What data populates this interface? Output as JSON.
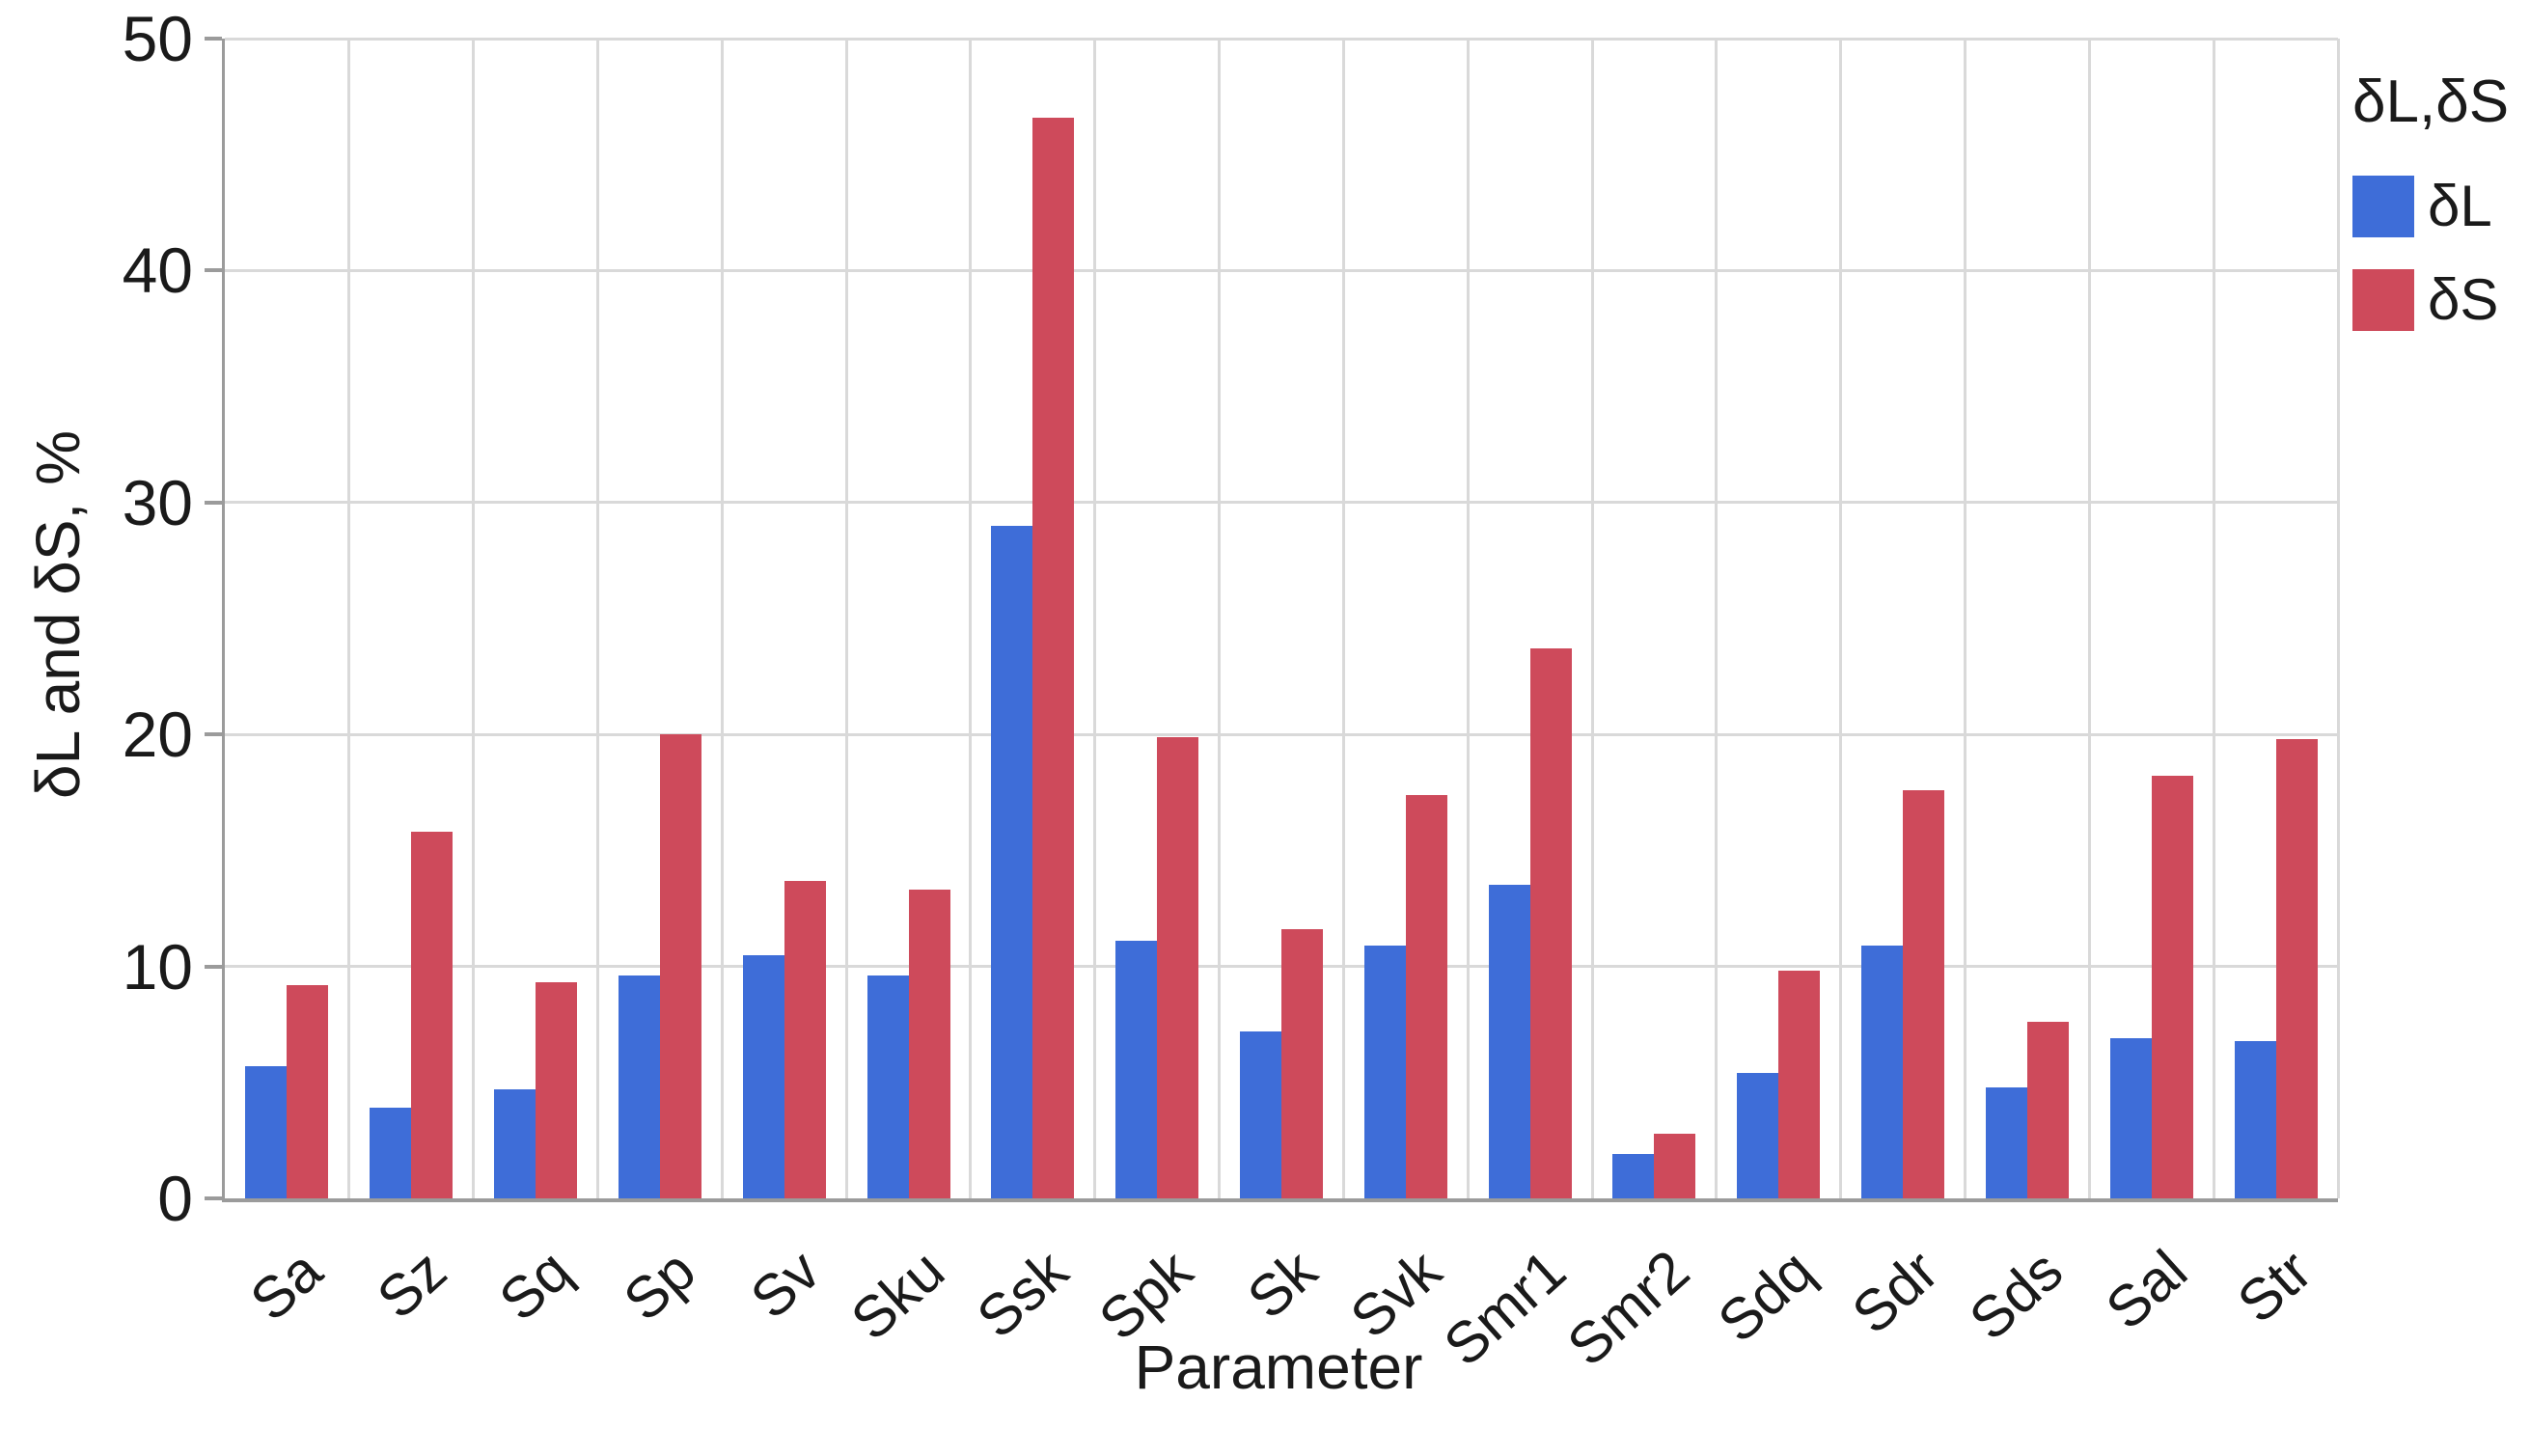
{
  "chart_data": {
    "type": "bar",
    "title": "",
    "xlabel": "Parameter",
    "ylabel": "δL and δS, %",
    "ylim": [
      0,
      50
    ],
    "yticks": [
      0,
      10,
      20,
      30,
      40,
      50
    ],
    "grid": true,
    "legend_position": "top-right-outside",
    "legend_title": "δL,δS",
    "categories": [
      "Sa",
      "Sz",
      "Sq",
      "Sp",
      "Sv",
      "Sku",
      "Ssk",
      "Spk",
      "Sk",
      "Svk",
      "Smr1",
      "Smr2",
      "Sdq",
      "Sdr",
      "Sds",
      "Sal",
      "Str"
    ],
    "series": [
      {
        "name": "δL",
        "color": "#3E6DD8",
        "values": [
          5.7,
          3.9,
          4.7,
          9.6,
          10.5,
          9.6,
          29.0,
          11.1,
          7.2,
          10.9,
          13.5,
          1.9,
          5.4,
          10.9,
          4.8,
          6.9,
          6.8
        ]
      },
      {
        "name": "δS",
        "color": "#CE4A5B",
        "values": [
          9.2,
          15.8,
          9.3,
          20.0,
          13.7,
          13.3,
          46.6,
          19.9,
          11.6,
          17.4,
          23.7,
          2.8,
          9.8,
          17.6,
          7.6,
          18.2,
          19.8
        ]
      }
    ]
  },
  "colors": {
    "bar_blue": "#3E6DD8",
    "bar_red": "#CE4A5B",
    "gridline": "#D9D9D9",
    "axis": "#9B9B9B",
    "text": "#1A1A1A",
    "background": "#FFFFFF"
  }
}
